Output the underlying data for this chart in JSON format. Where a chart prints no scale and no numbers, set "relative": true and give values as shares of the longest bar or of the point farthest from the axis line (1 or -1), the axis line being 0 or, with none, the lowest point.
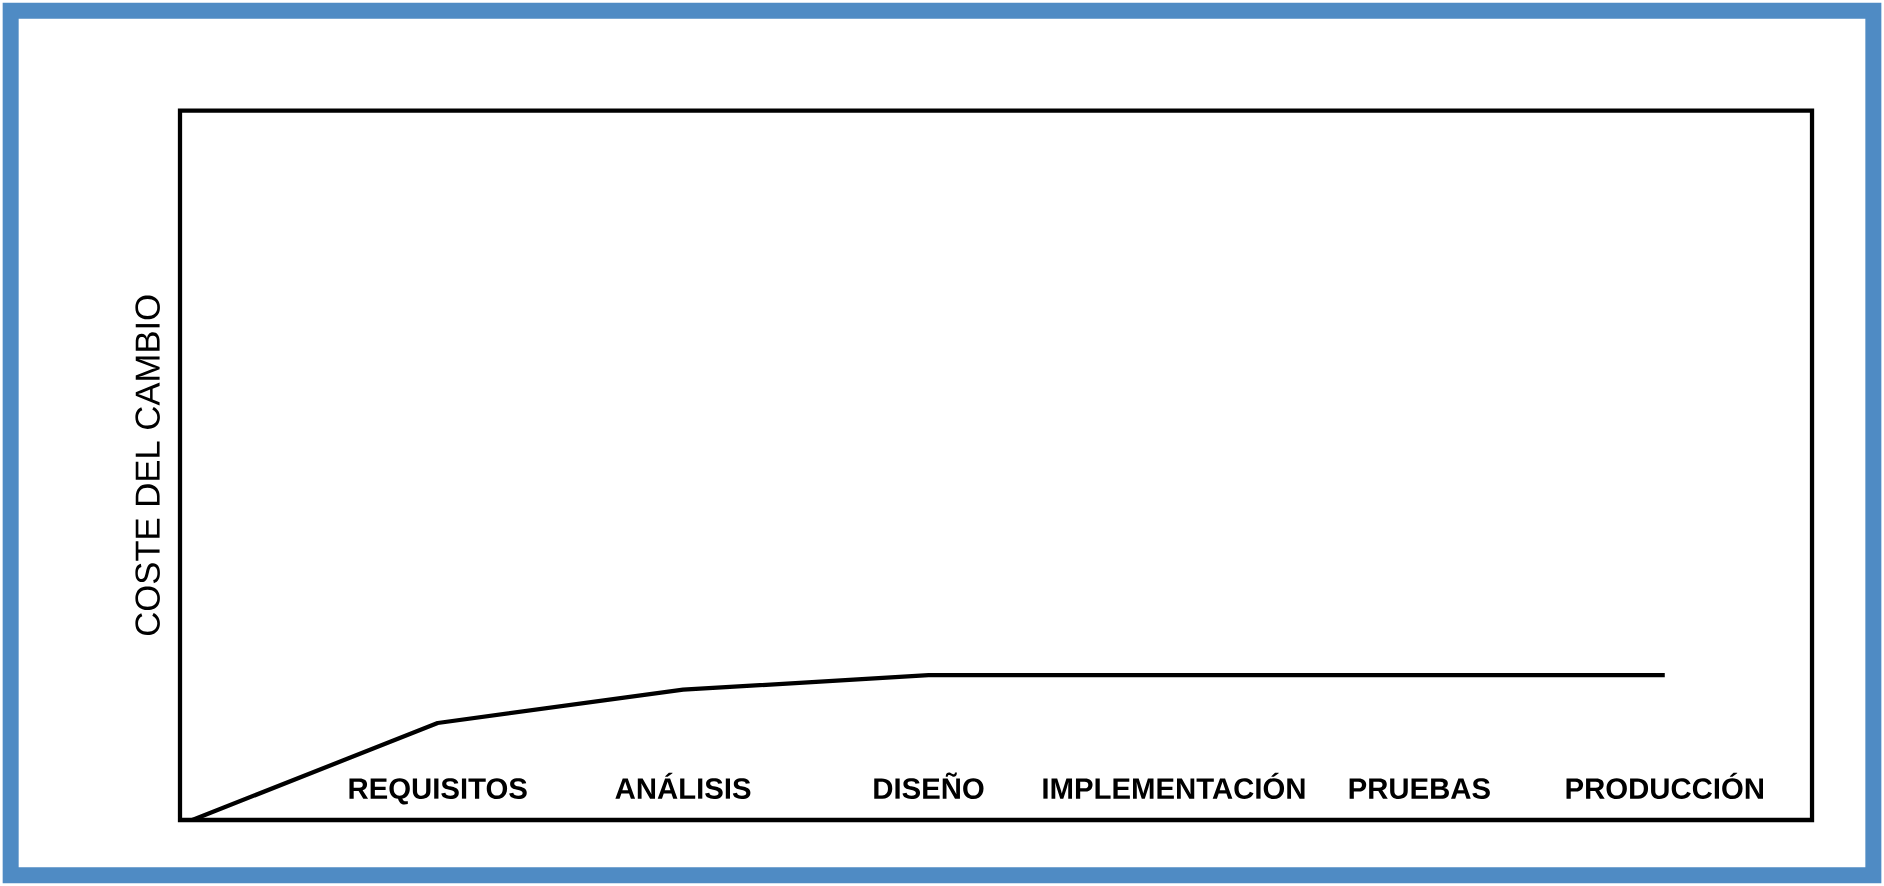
{
  "chart_data": {
    "type": "line",
    "relative": true,
    "ylabel": "COSTE DEL CAMBIO",
    "categories": [
      null,
      "REQUISITOS",
      "ANÁLISIS",
      "DISEÑO",
      "IMPLEMENTACIÓN",
      "PRUEBAS",
      "PRODUCCIÓN"
    ],
    "values": [
      0,
      0.67,
      0.9,
      1,
      1,
      1,
      1
    ],
    "color": "#000000",
    "grid": false,
    "marker": "none",
    "line_style": "solid"
  }
}
